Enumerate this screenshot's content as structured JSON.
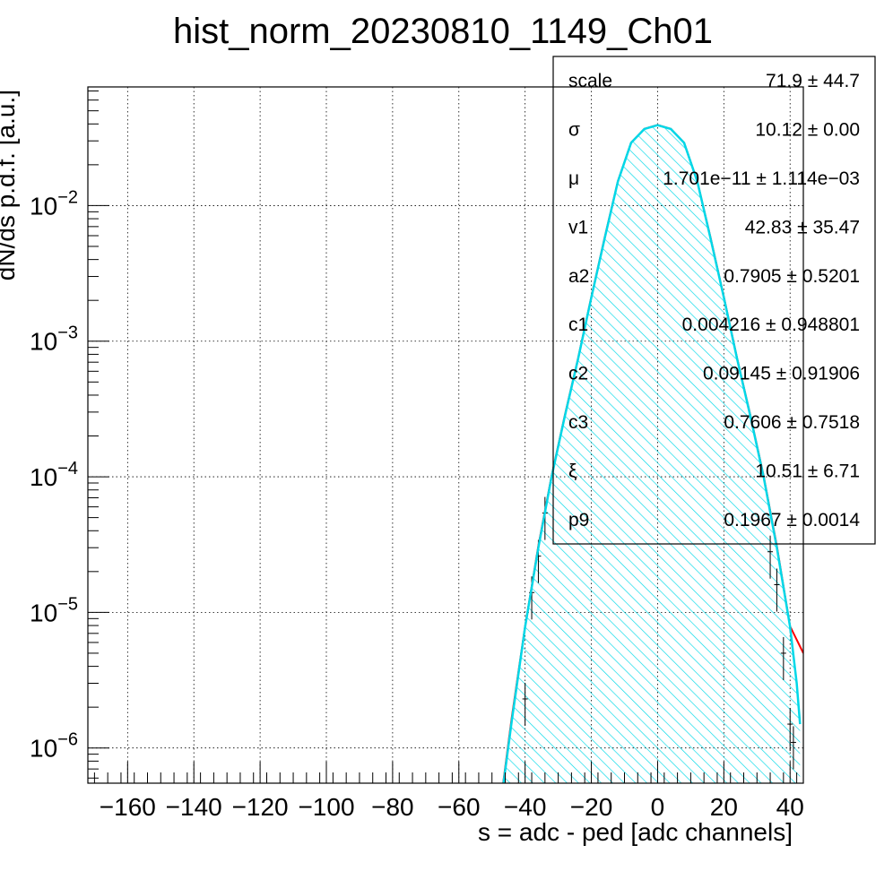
{
  "chart_data": {
    "type": "line",
    "title": "hist_norm_20230810_1149_Ch01",
    "xlabel": "s = adc - ped [adc channels]",
    "ylabel": "dN/ds p.d.f. [a.u.]",
    "xlim": [
      -172,
      44
    ],
    "ylim": [
      5.5e-07,
      0.075
    ],
    "y_scale": "log",
    "grid": true,
    "x_ticks": [
      -160,
      -140,
      -120,
      -100,
      -80,
      -60,
      -40,
      -20,
      0,
      20,
      40
    ],
    "x_tick_labels": [
      "−160",
      "−140",
      "−120",
      "−100",
      "−80",
      "−60",
      "−40",
      "−20",
      "0",
      "20",
      "40"
    ],
    "y_ticks": [
      {
        "value": 1e-06,
        "base": "10",
        "exp": "−6"
      },
      {
        "value": 1e-05,
        "base": "10",
        "exp": "−5"
      },
      {
        "value": 0.0001,
        "base": "10",
        "exp": "−4"
      },
      {
        "value": 0.001,
        "base": "10",
        "exp": "−3"
      },
      {
        "value": 0.01,
        "base": "10",
        "exp": "−2"
      }
    ],
    "fit_curve": {
      "color": "#ff0000",
      "x": [
        -47,
        -44,
        -40,
        -36,
        -32,
        -28,
        -24,
        -20,
        -16,
        -12,
        -8,
        -4,
        0,
        4,
        8,
        12,
        16,
        20,
        24,
        28,
        32,
        36,
        40,
        44
      ],
      "y": [
        4.7e-07,
        1.7e-06,
        7.9e-06,
        3.1e-05,
        0.000102,
        0.000285,
        0.00075,
        0.00213,
        0.0058,
        0.0151,
        0.0291,
        0.0368,
        0.0393,
        0.0368,
        0.0291,
        0.0151,
        0.0058,
        0.00213,
        0.00075,
        0.000285,
        0.000102,
        3.1e-05,
        7.9e-06,
        5e-06
      ]
    },
    "histogram": {
      "fill_color": "#00d8e8",
      "line_color": "#00d8e8",
      "x": [
        -47,
        -44,
        -40,
        -36,
        -32,
        -28,
        -24,
        -20,
        -16,
        -12,
        -8,
        -4,
        0,
        4,
        8,
        12,
        16,
        20,
        24,
        28,
        32,
        36,
        40,
        42,
        43
      ],
      "y": [
        4.5e-07,
        1.6e-06,
        7.8e-06,
        3e-05,
        0.0001,
        0.00028,
        0.00074,
        0.0021,
        0.0057,
        0.015,
        0.029,
        0.0367,
        0.0392,
        0.0367,
        0.029,
        0.015,
        0.0057,
        0.0021,
        0.00074,
        0.00028,
        0.0001,
        3e-05,
        7.8e-06,
        3e-06,
        1.5e-06
      ]
    },
    "error_points": [
      {
        "x": -40,
        "y": 2.3e-06
      },
      {
        "x": -38,
        "y": 1.4e-05
      },
      {
        "x": -36,
        "y": 2.6e-05
      },
      {
        "x": -34,
        "y": 5.4e-05
      },
      {
        "x": 34,
        "y": 2.8e-05
      },
      {
        "x": 36,
        "y": 1.6e-05
      },
      {
        "x": 38,
        "y": 5e-06
      },
      {
        "x": 40,
        "y": 1.5e-06
      },
      {
        "x": 41,
        "y": 1.1e-06
      }
    ],
    "stats_box": [
      {
        "name": "scale",
        "value": "71.9 ± 44.7"
      },
      {
        "name": "σ",
        "value": "10.12 ± 0.00"
      },
      {
        "name": "μ",
        "value": "1.701e−11 ± 1.114e−03"
      },
      {
        "name": "v1",
        "value": "42.83 ± 35.47"
      },
      {
        "name": "a2",
        "value": "0.7905 ± 0.5201"
      },
      {
        "name": "c1",
        "value": "0.004216 ± 0.948801"
      },
      {
        "name": "c2",
        "value": "0.09145 ± 0.91906"
      },
      {
        "name": "c3",
        "value": "0.7606 ± 0.7518"
      },
      {
        "name": "ξ",
        "value": "10.51 ± 6.71"
      },
      {
        "name": "p9",
        "value": "0.1967 ± 0.0014"
      }
    ],
    "stats_box_placement": "top-right"
  }
}
